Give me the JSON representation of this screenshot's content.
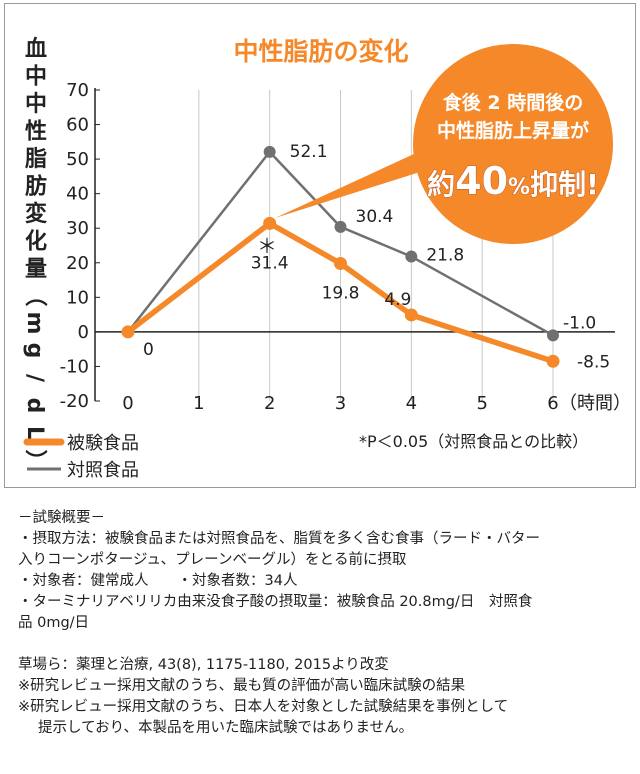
{
  "chart_data": {
    "type": "line",
    "title": "中性脂肪の変化",
    "ylabel": "血中中性脂肪変化量（mg/dL）",
    "xlabel": "",
    "x_unit": "（時間）",
    "x": [
      0,
      1,
      2,
      3,
      4,
      5,
      6
    ],
    "xticks": [
      "0",
      "1",
      "2",
      "3",
      "4",
      "5",
      "6"
    ],
    "yticks": [
      "70",
      "60",
      "50",
      "40",
      "30",
      "20",
      "10",
      "0",
      "-10",
      "-20"
    ],
    "ylim": [
      -20,
      70
    ],
    "xlim": [
      0,
      6
    ],
    "grid": "vertical",
    "legend_position": "bottom-left",
    "series": [
      {
        "name": "被験食品",
        "color": "#F5892A",
        "points": [
          [
            0,
            0
          ],
          [
            2,
            31.4
          ],
          [
            3,
            19.8
          ],
          [
            4,
            4.9
          ],
          [
            6,
            -8.5
          ]
        ],
        "labels": [
          "",
          "31.4",
          "19.8",
          "4.9",
          "-8.5"
        ]
      },
      {
        "name": "対照食品",
        "color": "#707070",
        "points": [
          [
            0,
            0
          ],
          [
            2,
            52.1
          ],
          [
            3,
            30.4
          ],
          [
            4,
            21.8
          ],
          [
            6,
            -1.0
          ]
        ],
        "labels": [
          "0",
          "52.1",
          "30.4",
          "21.8",
          "-1.0"
        ]
      }
    ],
    "significance_mark": "＊",
    "footnote": "*P＜0.05（対照食品との比較）",
    "callout": {
      "line1": "食後 2 時間後の",
      "line2": "中性脂肪上昇量が",
      "emph_prefix": "約",
      "emph_number": "40",
      "emph_percent": "%",
      "emph_suffix": "抑制!",
      "fill": "#F5892A"
    },
    "title_color": "#F5892A"
  },
  "notes": {
    "heading": "－試験概要－",
    "method_1": "・摂取方法：被験食品または対照食品を、脂質を多く含む食事（ラード・バター",
    "method_2": "入りコーンポタージュ、プレーンベーグル）をとる前に摂取",
    "subjects": "・対象者：健常成人　　・対象者数：34人",
    "intake_1": "・ターミナリアベリリカ由来没食子酸の摂取量：被験食品 20.8mg/日　対照食",
    "intake_2": "品 0mg/日",
    "citation": "草場ら：薬理と治療, 43(8), 1175-1180, 2015より改変",
    "disclaimer_1": "※研究レビュー採用文献のうち、最も質の評価が高い臨床試験の結果",
    "disclaimer_2": "※研究レビュー採用文献のうち、日本人を対象とした試験結果を事例として",
    "disclaimer_3": "提示しており、本製品を用いた臨床試験ではありません。"
  }
}
